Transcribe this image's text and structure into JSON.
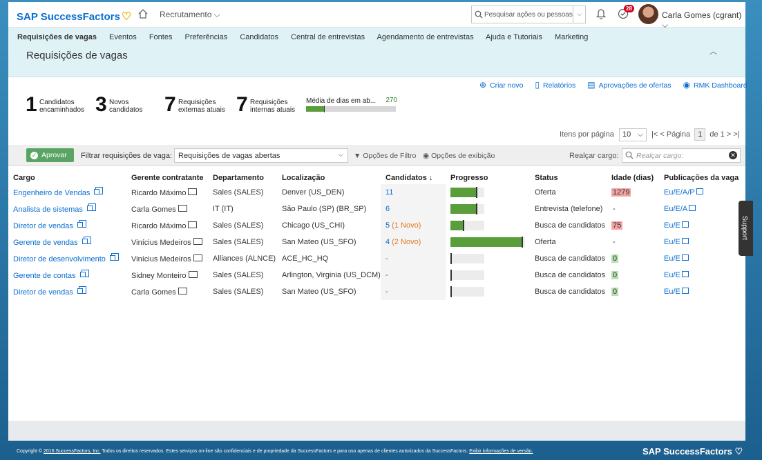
{
  "header": {
    "logo_text": "SAP SuccessFactors",
    "module": "Recrutamento",
    "search_placeholder": "Pesquisar ações ou pessoas",
    "notification_count": "28",
    "user_name": "Carla Gomes (cgrant)"
  },
  "nav": {
    "items": [
      "Requisições de vagas",
      "Eventos",
      "Fontes",
      "Preferências",
      "Candidatos",
      "Central de entrevistas",
      "Agendamento de entrevistas",
      "Ajuda e Tutoriais",
      "Marketing"
    ],
    "page_title": "Requisições de vagas"
  },
  "actions": {
    "create": "Criar novo",
    "reports": "Relatórios",
    "offer_approvals": "Aprovações de ofertas",
    "rmk": "RMK Dashboard"
  },
  "tiles": [
    {
      "num": "1",
      "line1": "Candidatos",
      "line2": "encaminhados"
    },
    {
      "num": "3",
      "line1": "Novos",
      "line2": "candidatos"
    },
    {
      "num": "7",
      "line1": "Requisições",
      "line2": "externas atuais"
    },
    {
      "num": "7",
      "line1": "Requisições",
      "line2": "internas atuais"
    }
  ],
  "avg_days": {
    "label": "Média de dias em ab...",
    "value": "270",
    "fill_fraction": 0.2
  },
  "pagination": {
    "items_label": "Itens por página",
    "items_value": "10",
    "page_label": "Página",
    "page": "1",
    "of_label": "de 1"
  },
  "filter": {
    "approve": "Aprovar",
    "label": "Filtrar requisições de vaga:",
    "selected": "Requisições de vagas abertas",
    "filter_options": "Opções de Filtro",
    "view_options": "Opções de exibição",
    "highlight_label": "Realçar cargo:",
    "highlight_placeholder": "Realçar cargo:"
  },
  "table": {
    "columns": [
      "Cargo",
      "Gerente contratante",
      "Departamento",
      "Localização",
      "Candidatos ↓",
      "Progresso",
      "Status",
      "Idade (dias)",
      "Publicações da vaga"
    ],
    "rows": [
      {
        "cargo": "Engenheiro de Vendas",
        "manager": "Ricardo Máximo",
        "dept": "Sales (SALES)",
        "loc": "Denver (US_DEN)",
        "cand": "11",
        "cand_new": "",
        "progress": 0.75,
        "status": "Oferta",
        "age": "1279",
        "age_color": "red",
        "pub": "Eu/E/A/P"
      },
      {
        "cargo": "Analista de sistemas",
        "manager": "Carla Gomes",
        "dept": "IT (IT)",
        "loc": "São Paulo (SP) (BR_SP)",
        "cand": "6",
        "cand_new": "",
        "progress": 0.75,
        "status": "Entrevista (telefone)",
        "age": "-",
        "age_color": "",
        "pub": "Eu/E/A"
      },
      {
        "cargo": "Diretor de vendas",
        "manager": "Ricardo Máximo",
        "dept": "Sales (SALES)",
        "loc": "Chicago (US_CHI)",
        "cand": "5",
        "cand_new": " (1 Novo)",
        "progress": 0.37,
        "status": "Busca de candidatos",
        "age": "75",
        "age_color": "red",
        "pub": "Eu/E"
      },
      {
        "cargo": "Gerente de vendas",
        "manager": "Vinícius Medeiros",
        "dept": "Sales (SALES)",
        "loc": "San Mateo (US_SFO)",
        "cand": "4",
        "cand_new": " (2 Novo)",
        "progress": 0.95,
        "status": "Oferta",
        "age": "-",
        "age_color": "",
        "pub": "Eu/E"
      },
      {
        "cargo": "Diretor de desenvolvimento",
        "manager": "Vinícius Medeiros",
        "dept": "Alliances (ALNCE)",
        "loc": "ACE_HC_HQ",
        "cand": "-",
        "cand_new": "",
        "progress": 0,
        "status": "Busca de candidatos",
        "age": "0",
        "age_color": "green",
        "pub": "Eu/E"
      },
      {
        "cargo": "Gerente de contas",
        "manager": "Sidney Monteiro",
        "dept": "Sales (SALES)",
        "loc": "Arlington, Virginia (US_DCM)",
        "cand": "-",
        "cand_new": "",
        "progress": 0,
        "status": "Busca de candidatos",
        "age": "0",
        "age_color": "green",
        "pub": "Eu/E"
      },
      {
        "cargo": "Diretor de vendas",
        "manager": "Carla Gomes",
        "dept": "Sales (SALES)",
        "loc": "San Mateo (US_SFO)",
        "cand": "-",
        "cand_new": "",
        "progress": 0,
        "status": "Busca de candidatos",
        "age": "0",
        "age_color": "green",
        "pub": "Eu/E"
      }
    ]
  },
  "support": "Support",
  "footer": {
    "copyright": "Copyright © ",
    "company_link": "2016 SuccessFactors, Inc.",
    "rights": " Todos os direitos reservados. Estes serviços on-line são confidenciais e de propriedade da SuccessFactors e para uso apenas de clientes autorizados da SuccessFactors. ",
    "info_link": "Exibir informações de versão.",
    "logo": "SAP SuccessFactors"
  }
}
